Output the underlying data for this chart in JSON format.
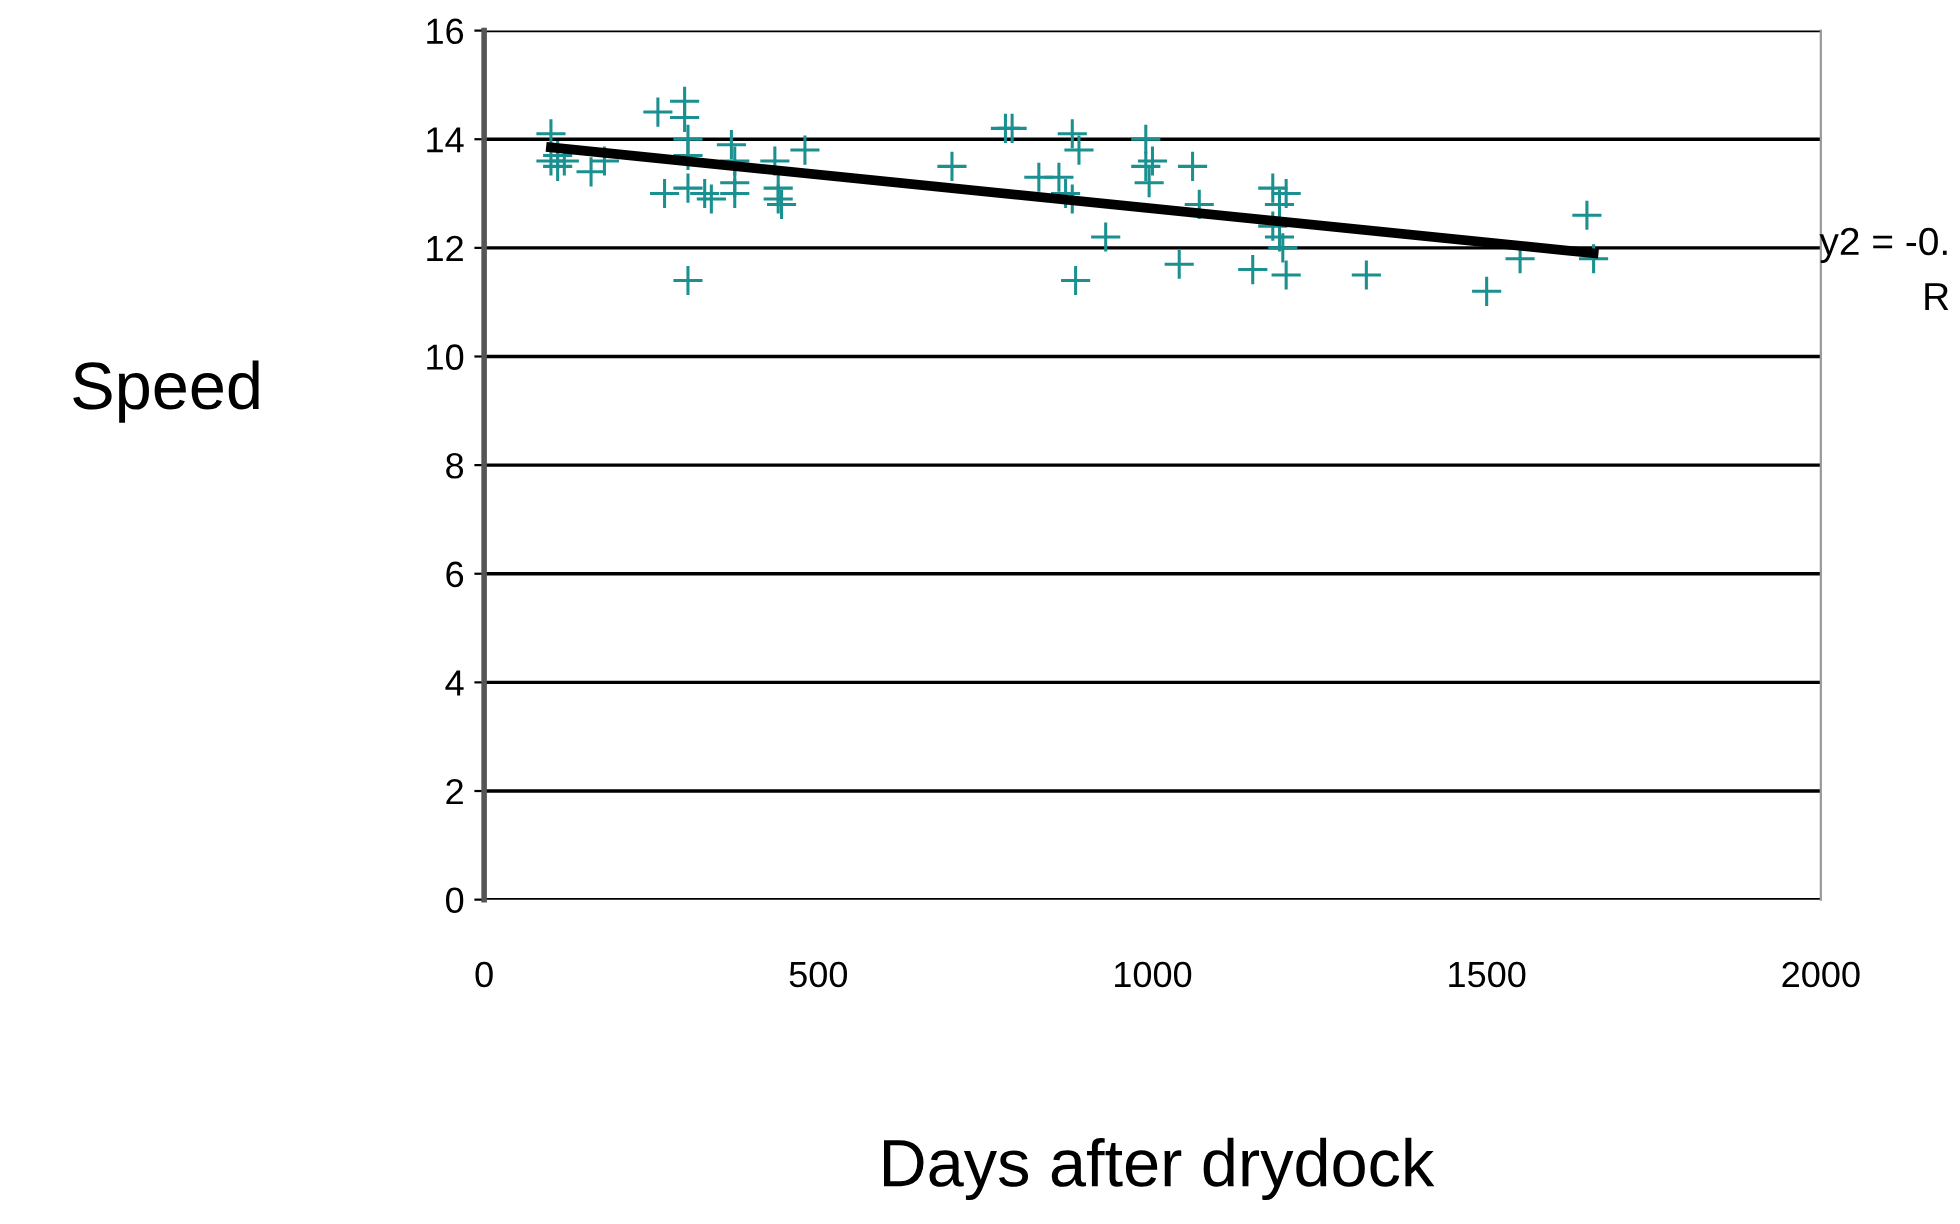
{
  "chart_data": {
    "type": "scatter",
    "xlabel": "Days after drydock",
    "ylabel": "Speed",
    "xlim": [
      0,
      2000
    ],
    "xticks": [
      0,
      500,
      1000,
      1500,
      2000
    ],
    "ylim": [
      0,
      16
    ],
    "yticks": [
      0,
      2,
      4,
      6,
      8,
      10,
      12,
      14,
      16
    ],
    "grid": "y",
    "annotations": [
      "y2 = -0.",
      "R"
    ],
    "series": [
      {
        "marker": "cross",
        "color": "#1a9090",
        "x": [
          100,
          100,
          110,
          110,
          120,
          160,
          180,
          260,
          270,
          300,
          300,
          305,
          305,
          305,
          305,
          330,
          340,
          370,
          375,
          375,
          375,
          435,
          440,
          440,
          445,
          480,
          700,
          780,
          790,
          830,
          860,
          870,
          880,
          890,
          880,
          885,
          930,
          990,
          990,
          995,
          1000,
          1040,
          1060,
          1070,
          1150,
          1180,
          1180,
          1190,
          1190,
          1195,
          1200,
          1200,
          1320,
          1500,
          1550,
          1650,
          1660
        ],
        "values": [
          14.1,
          13.6,
          13.5,
          13.7,
          13.6,
          13.4,
          13.6,
          14.5,
          13.0,
          14.4,
          14.7,
          14.0,
          13.7,
          13.1,
          11.4,
          13.0,
          12.9,
          13.9,
          13.6,
          13.2,
          13.0,
          13.6,
          13.1,
          12.9,
          12.8,
          13.8,
          13.5,
          14.2,
          14.2,
          13.3,
          13.3,
          13.0,
          14.1,
          13.8,
          12.9,
          11.4,
          12.2,
          14.0,
          13.5,
          13.2,
          13.6,
          11.7,
          13.5,
          12.8,
          11.6,
          13.1,
          12.4,
          12.8,
          12.2,
          12.0,
          13.0,
          11.5,
          11.5,
          11.2,
          11.8,
          12.6,
          11.8
        ]
      },
      {
        "type": "line",
        "color": "#000000",
        "x": [
          100,
          1660
        ],
        "values": [
          13.85,
          11.9
        ]
      }
    ]
  }
}
